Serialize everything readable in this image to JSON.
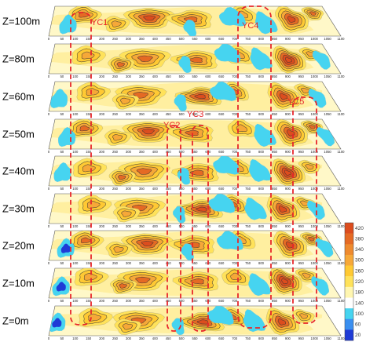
{
  "slices": [
    {
      "label": "Z=100m"
    },
    {
      "label": "Z=80m"
    },
    {
      "label": "Z=60m"
    },
    {
      "label": "Z=50m"
    },
    {
      "label": "Z=40m"
    },
    {
      "label": "Z=30m"
    },
    {
      "label": "Z=20m"
    },
    {
      "label": "Z=10m"
    },
    {
      "label": "Z=0m"
    }
  ],
  "x_ticks": [
    "0",
    "50",
    "100",
    "150",
    "200",
    "250",
    "300",
    "350",
    "400",
    "450",
    "500",
    "550",
    "600",
    "650",
    "700",
    "750",
    "800",
    "850",
    "900",
    "950",
    "1000",
    "1050",
    "1100"
  ],
  "zones": [
    {
      "label": "YC1"
    },
    {
      "label": "YC2"
    },
    {
      "label": "YC3"
    },
    {
      "label": "YC4"
    },
    {
      "label": "YC5"
    }
  ],
  "colorbar": {
    "ticks": [
      "20",
      "60",
      "100",
      "140",
      "180",
      "220",
      "260",
      "300",
      "340",
      "380",
      "420"
    ],
    "colors": [
      "#1f3bd6",
      "#3a8ff0",
      "#46d4f0",
      "#ffffff",
      "#fff6b0",
      "#ffe25a",
      "#ffc933",
      "#f6a838",
      "#ee8a2e",
      "#e56a24",
      "#dc4d1e"
    ]
  },
  "colors": {
    "zone_outline": "#e8262b",
    "contour": "#333333"
  }
}
